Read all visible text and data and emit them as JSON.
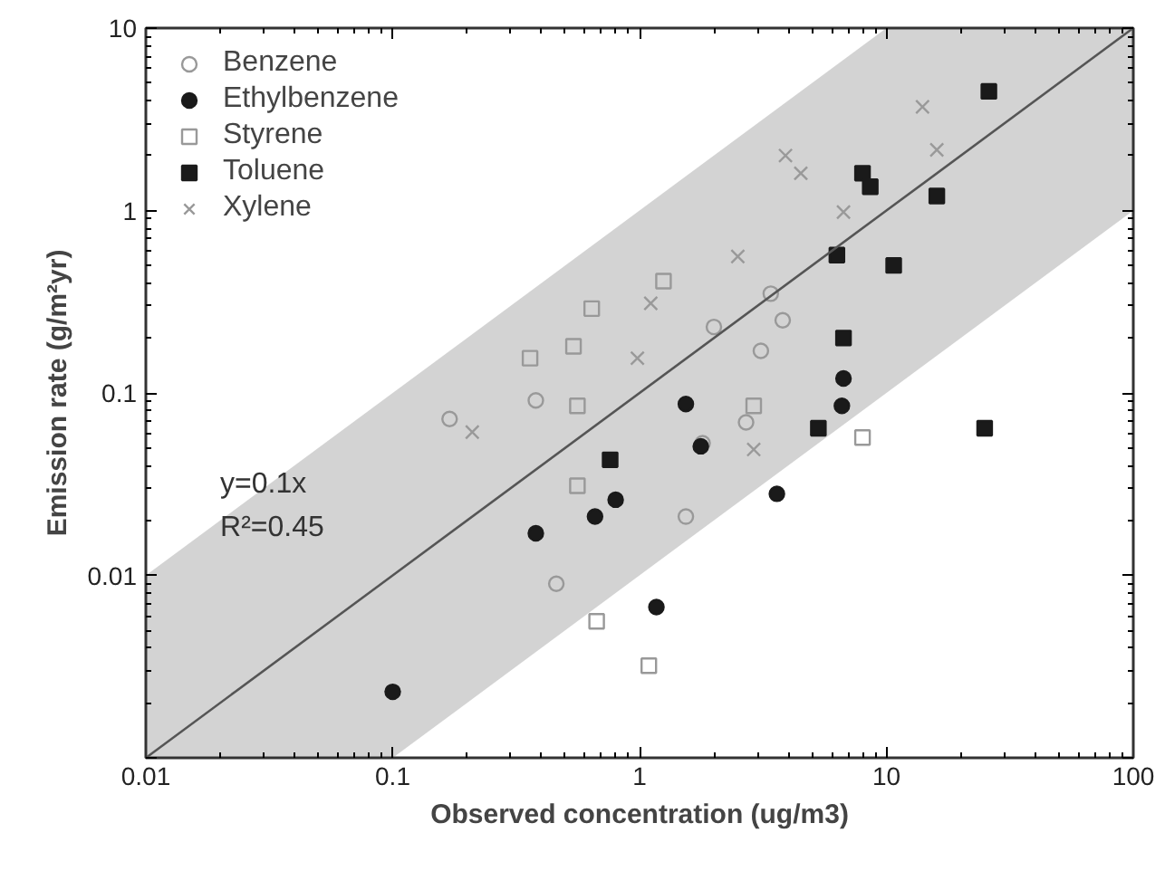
{
  "chart_data": {
    "type": "scatter",
    "xlabel": "Observed concentration (ug/m3)",
    "ylabel": "Emission rate (g/m²yr)",
    "log": "xy",
    "xlim": [
      0.01,
      100
    ],
    "ylim": [
      0.001,
      10
    ],
    "xticks": [
      0.01,
      0.1,
      1,
      10,
      100
    ],
    "yticks": [
      {
        "value": 0.001,
        "label": null
      },
      0.01,
      0.1,
      1,
      10
    ],
    "grid": false,
    "legend": "top left",
    "annotations": [
      "y=0.1x",
      "R²=0.45"
    ],
    "series": [
      {
        "name": "Benzene",
        "color": "#999999",
        "marker": "circle",
        "x": [
          0.17,
          0.38,
          2.0,
          3.4,
          3.8,
          3.1,
          2.7,
          1.54,
          0.46,
          1.8
        ],
        "values": [
          0.072,
          0.091,
          0.23,
          0.35,
          0.25,
          0.17,
          0.069,
          0.021,
          0.009,
          0.053
        ]
      },
      {
        "name": "Ethylbenzene",
        "color": "#1a1a1a",
        "marker": "circle",
        "x": [
          0.1,
          0.38,
          0.66,
          0.8,
          1.54,
          1.77,
          6.6,
          6.7,
          3.6,
          1.17
        ],
        "values": [
          0.0023,
          0.017,
          0.021,
          0.026,
          0.087,
          0.051,
          0.085,
          0.12,
          0.028,
          0.0067
        ]
      },
      {
        "name": "Styrene",
        "color": "#999999",
        "marker": "square",
        "x": [
          0.64,
          0.36,
          0.54,
          0.56,
          1.25,
          2.9,
          0.56,
          0.67,
          8.0,
          1.09
        ],
        "values": [
          0.29,
          0.155,
          0.18,
          0.085,
          0.41,
          0.085,
          0.031,
          0.0056,
          0.057,
          0.0032
        ]
      },
      {
        "name": "Toluene",
        "color": "#1a1a1a",
        "marker": "square",
        "x": [
          26,
          8.0,
          8.6,
          16,
          6.3,
          10.7,
          6.7,
          5.3,
          25,
          0.76
        ],
        "values": [
          4.5,
          1.6,
          1.35,
          1.2,
          0.57,
          0.5,
          0.2,
          0.064,
          0.064,
          0.043
        ]
      },
      {
        "name": "Xylene",
        "color": "#999999",
        "marker": "cross",
        "x": [
          14,
          16,
          3.9,
          4.5,
          6.7,
          2.5,
          1.11,
          0.98,
          0.21,
          2.9
        ],
        "values": [
          3.7,
          2.15,
          2.0,
          1.6,
          0.98,
          0.56,
          0.31,
          0.155,
          0.061,
          0.049
        ]
      },
      {
        "type": "line",
        "color": "#555555",
        "x": [
          0.01,
          0.1,
          10,
          100
        ],
        "values": [
          0.001,
          0.01,
          1,
          10
        ],
        "lower": [
          0.001,
          0.001,
          0.1,
          1
        ],
        "upper": [
          0.01,
          0.1,
          10,
          10
        ]
      }
    ]
  }
}
